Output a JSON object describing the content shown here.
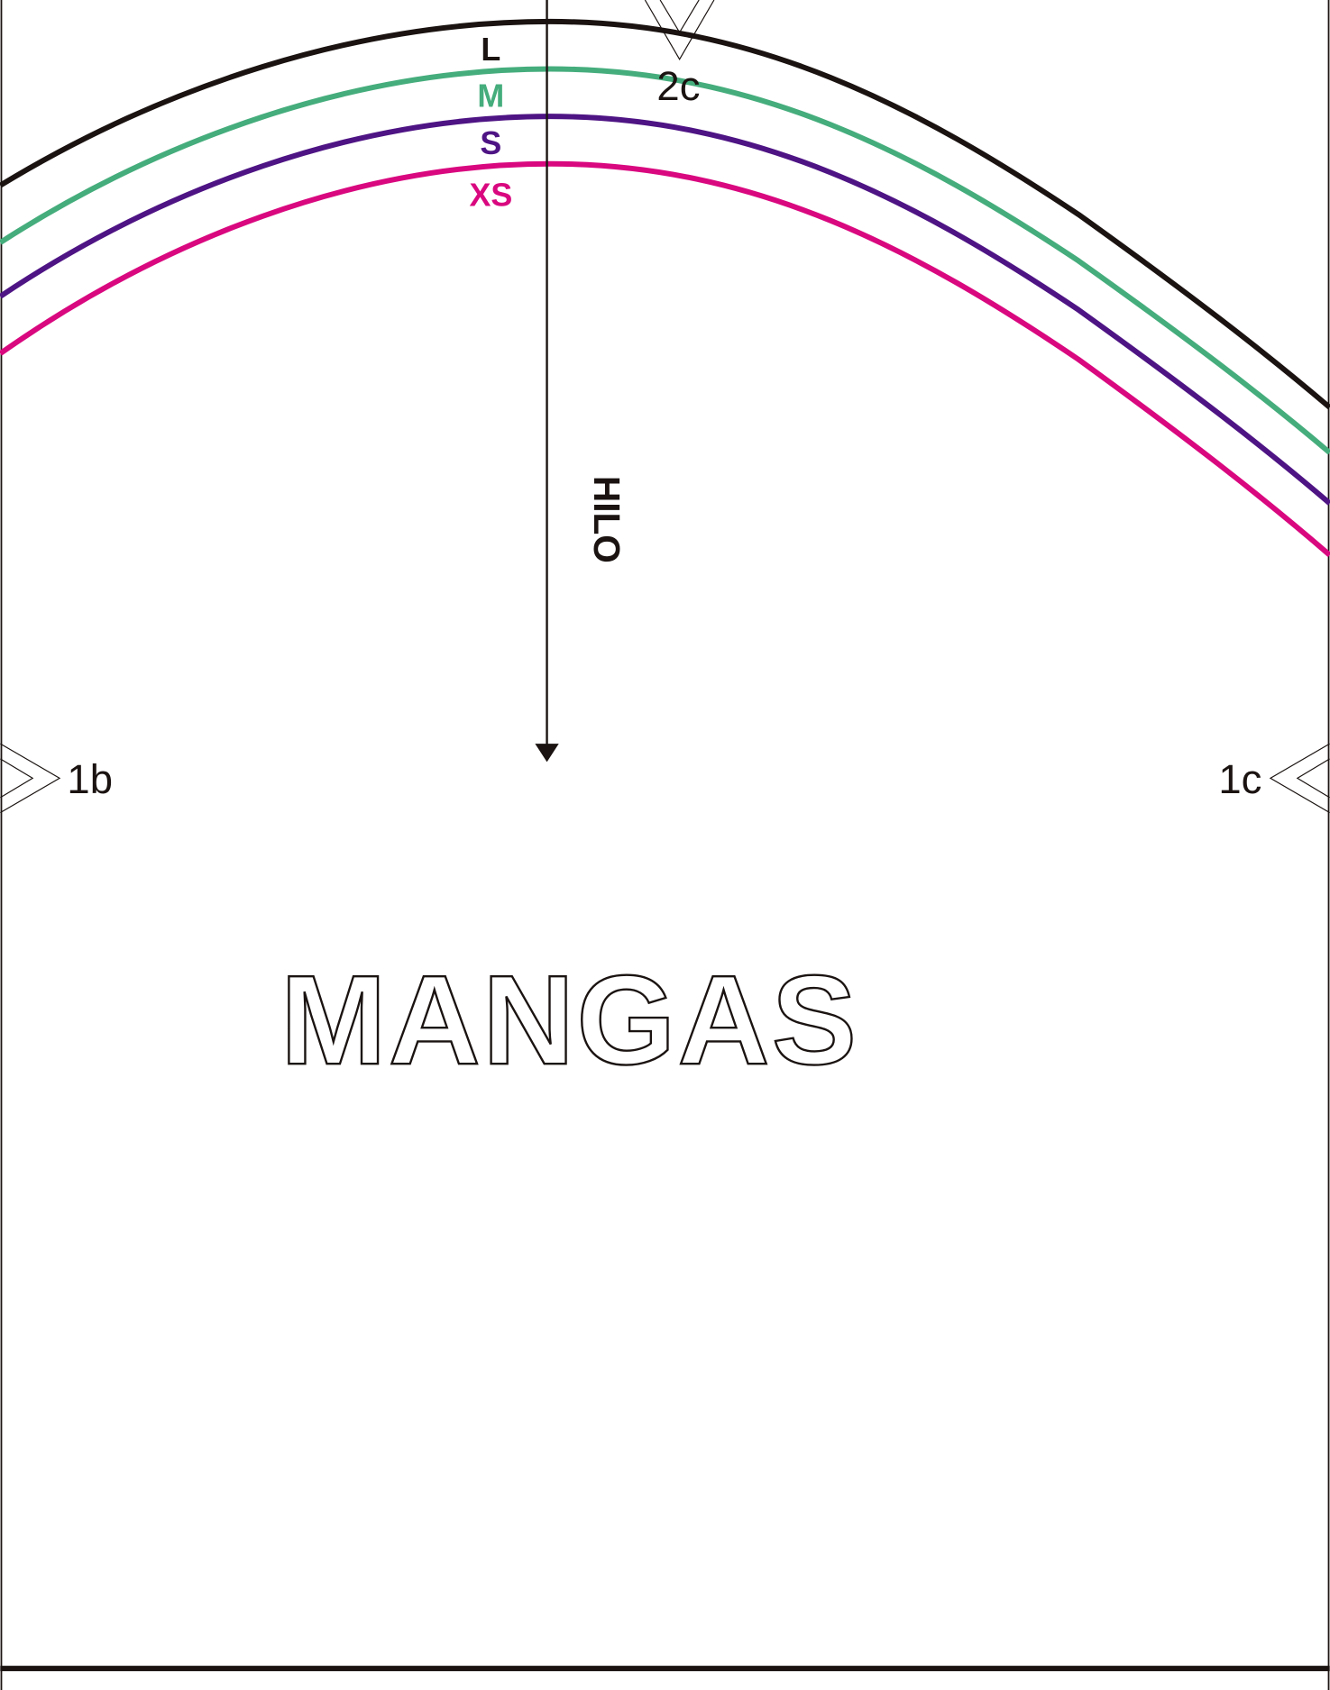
{
  "sizes": [
    {
      "label": "L",
      "color": "#1a1311"
    },
    {
      "label": "M",
      "color": "#45ad7c"
    },
    {
      "label": "S",
      "color": "#4e1484"
    },
    {
      "label": "XS",
      "color": "#d9087f"
    }
  ],
  "grainline": "HILO",
  "title": "MANGAS",
  "notches": {
    "top": "2c",
    "left": "1b",
    "right": "1c"
  }
}
